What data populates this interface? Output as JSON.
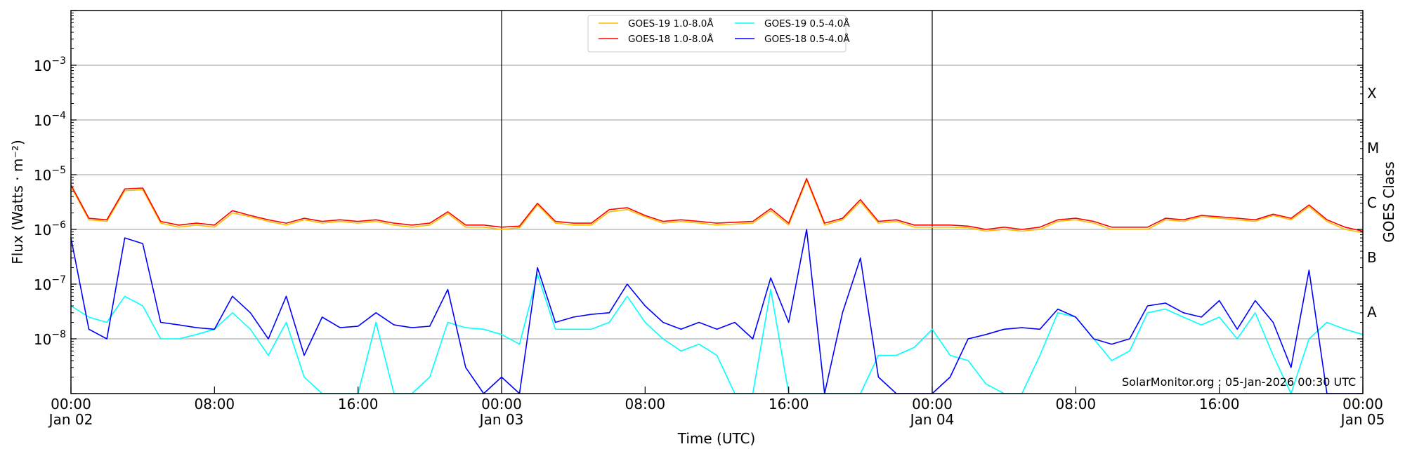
{
  "chart_data": {
    "type": "line",
    "title": "",
    "xlabel": "Time (UTC)",
    "ylabel": "Flux (Watts · m⁻²)",
    "ylabel_right": "GOES Class",
    "yscale": "log",
    "ylim": [
      1e-09,
      0.01
    ],
    "xlim": [
      "2026-01-02T00:00",
      "2026-01-05T00:00"
    ],
    "grid": "horizontal at each decade",
    "legend_placement": "top-center",
    "y_ticks": [
      {
        "base": "10",
        "exp": "−3",
        "value": 0.001
      },
      {
        "base": "10",
        "exp": "−4",
        "value": 0.0001
      },
      {
        "base": "10",
        "exp": "−5",
        "value": 1e-05
      },
      {
        "base": "10",
        "exp": "−6",
        "value": 1e-06
      },
      {
        "base": "10",
        "exp": "−7",
        "value": 1e-07
      },
      {
        "base": "10",
        "exp": "−8",
        "value": 1e-08
      }
    ],
    "x_ticks": [
      {
        "time": "2026-01-02T00:00",
        "label": "00:00",
        "date": "Jan 02"
      },
      {
        "time": "2026-01-02T08:00",
        "label": "08:00",
        "date": ""
      },
      {
        "time": "2026-01-02T16:00",
        "label": "16:00",
        "date": ""
      },
      {
        "time": "2026-01-03T00:00",
        "label": "00:00",
        "date": "Jan 03"
      },
      {
        "time": "2026-01-03T08:00",
        "label": "08:00",
        "date": ""
      },
      {
        "time": "2026-01-03T16:00",
        "label": "16:00",
        "date": ""
      },
      {
        "time": "2026-01-04T00:00",
        "label": "00:00",
        "date": "Jan 04"
      },
      {
        "time": "2026-01-04T08:00",
        "label": "08:00",
        "date": ""
      },
      {
        "time": "2026-01-04T16:00",
        "label": "16:00",
        "date": ""
      },
      {
        "time": "2026-01-05T00:00",
        "label": "00:00",
        "date": "Jan 05"
      }
    ],
    "day_lines": [
      "2026-01-03T00:00",
      "2026-01-04T00:00"
    ],
    "goes_classes": [
      {
        "label": "X",
        "min": 0.0001
      },
      {
        "label": "M",
        "min": 1e-05
      },
      {
        "label": "C",
        "min": 1e-06
      },
      {
        "label": "B",
        "min": 1e-07
      },
      {
        "label": "A",
        "min": 1e-08
      }
    ],
    "x": [
      "2026-01-02T00:00",
      "2026-01-02T01:00",
      "2026-01-02T02:00",
      "2026-01-02T03:00",
      "2026-01-02T04:00",
      "2026-01-02T05:00",
      "2026-01-02T06:00",
      "2026-01-02T07:00",
      "2026-01-02T08:00",
      "2026-01-02T09:00",
      "2026-01-02T10:00",
      "2026-01-02T11:00",
      "2026-01-02T12:00",
      "2026-01-02T13:00",
      "2026-01-02T14:00",
      "2026-01-02T15:00",
      "2026-01-02T16:00",
      "2026-01-02T17:00",
      "2026-01-02T18:00",
      "2026-01-02T19:00",
      "2026-01-02T20:00",
      "2026-01-02T21:00",
      "2026-01-02T22:00",
      "2026-01-02T23:00",
      "2026-01-03T00:00",
      "2026-01-03T01:00",
      "2026-01-03T02:00",
      "2026-01-03T03:00",
      "2026-01-03T04:00",
      "2026-01-03T05:00",
      "2026-01-03T06:00",
      "2026-01-03T07:00",
      "2026-01-03T08:00",
      "2026-01-03T09:00",
      "2026-01-03T10:00",
      "2026-01-03T11:00",
      "2026-01-03T12:00",
      "2026-01-03T13:00",
      "2026-01-03T14:00",
      "2026-01-03T15:00",
      "2026-01-03T16:00",
      "2026-01-03T17:00",
      "2026-01-03T18:00",
      "2026-01-03T19:00",
      "2026-01-03T20:00",
      "2026-01-03T21:00",
      "2026-01-03T22:00",
      "2026-01-03T23:00",
      "2026-01-04T00:00",
      "2026-01-04T01:00",
      "2026-01-04T02:00",
      "2026-01-04T03:00",
      "2026-01-04T04:00",
      "2026-01-04T05:00",
      "2026-01-04T06:00",
      "2026-01-04T07:00",
      "2026-01-04T08:00",
      "2026-01-04T09:00",
      "2026-01-04T10:00",
      "2026-01-04T11:00",
      "2026-01-04T12:00",
      "2026-01-04T13:00",
      "2026-01-04T14:00",
      "2026-01-04T15:00",
      "2026-01-04T16:00",
      "2026-01-04T17:00",
      "2026-01-04T18:00",
      "2026-01-04T19:00",
      "2026-01-04T20:00",
      "2026-01-04T21:00",
      "2026-01-04T22:00",
      "2026-01-04T23:00",
      "2026-01-05T00:00"
    ],
    "series": [
      {
        "name": "GOES-19 1.0-8.0Å",
        "color": "#ffbf00",
        "values": [
          6e-06,
          1.5e-06,
          1.4e-06,
          5.1e-06,
          5.3e-06,
          1.3e-06,
          1.1e-06,
          1.2e-06,
          1.1e-06,
          2e-06,
          1.7e-06,
          1.4e-06,
          1.2e-06,
          1.5e-06,
          1.3e-06,
          1.4e-06,
          1.3e-06,
          1.4e-06,
          1.2e-06,
          1.1e-06,
          1.2e-06,
          1.95e-06,
          1.1e-06,
          1.1e-06,
          1e-06,
          1.07e-06,
          2.8e-06,
          1.3e-06,
          1.2e-06,
          1.2e-06,
          2.1e-06,
          2.3e-06,
          1.7e-06,
          1.3e-06,
          1.4e-06,
          1.3e-06,
          1.2e-06,
          1.25e-06,
          1.3e-06,
          2.2e-06,
          1.2e-06,
          7.9e-06,
          1.2e-06,
          1.5e-06,
          3.2e-06,
          1.3e-06,
          1.4e-06,
          1.1e-06,
          1.1e-06,
          1.1e-06,
          1.07e-06,
          9.3e-07,
          1e-06,
          9.3e-07,
          1e-06,
          1.4e-06,
          1.5e-06,
          1.3e-06,
          1e-06,
          1e-06,
          1e-06,
          1.5e-06,
          1.4e-06,
          1.7e-06,
          1.6e-06,
          1.5e-06,
          1.4e-06,
          1.8e-06,
          1.5e-06,
          2.6e-06,
          1.4e-06,
          1e-06,
          8.7e-07
        ]
      },
      {
        "name": "GOES-18 1.0-8.0Å",
        "color": "#ff0000",
        "values": [
          6.5e-06,
          1.6e-06,
          1.5e-06,
          5.5e-06,
          5.7e-06,
          1.4e-06,
          1.2e-06,
          1.3e-06,
          1.2e-06,
          2.2e-06,
          1.8e-06,
          1.5e-06,
          1.3e-06,
          1.6e-06,
          1.4e-06,
          1.5e-06,
          1.4e-06,
          1.5e-06,
          1.3e-06,
          1.2e-06,
          1.3e-06,
          2.1e-06,
          1.2e-06,
          1.2e-06,
          1.1e-06,
          1.15e-06,
          3e-06,
          1.4e-06,
          1.3e-06,
          1.3e-06,
          2.3e-06,
          2.5e-06,
          1.8e-06,
          1.4e-06,
          1.5e-06,
          1.4e-06,
          1.3e-06,
          1.35e-06,
          1.4e-06,
          2.4e-06,
          1.3e-06,
          8.5e-06,
          1.3e-06,
          1.6e-06,
          3.5e-06,
          1.4e-06,
          1.5e-06,
          1.2e-06,
          1.2e-06,
          1.2e-06,
          1.15e-06,
          1e-06,
          1.1e-06,
          1e-06,
          1.1e-06,
          1.5e-06,
          1.6e-06,
          1.4e-06,
          1.1e-06,
          1.1e-06,
          1.1e-06,
          1.6e-06,
          1.5e-06,
          1.8e-06,
          1.7e-06,
          1.6e-06,
          1.5e-06,
          1.9e-06,
          1.6e-06,
          2.8e-06,
          1.5e-06,
          1.1e-06,
          9.3e-07
        ]
      },
      {
        "name": "GOES-19 0.5-4.0Å",
        "color": "#00ffff",
        "values": [
          4e-08,
          2.5e-08,
          2e-08,
          6e-08,
          4e-08,
          1e-08,
          1e-08,
          1.2e-08,
          1.5e-08,
          3e-08,
          1.5e-08,
          5e-09,
          2e-08,
          2e-09,
          1e-09,
          1e-09,
          1e-09,
          2e-08,
          1e-09,
          1e-09,
          2e-09,
          2e-08,
          1.6e-08,
          1.5e-08,
          1.2e-08,
          8e-09,
          1.5e-07,
          1.5e-08,
          1.5e-08,
          1.5e-08,
          2e-08,
          6e-08,
          2e-08,
          1e-08,
          6e-09,
          8e-09,
          5e-09,
          1e-09,
          1e-09,
          8e-08,
          1e-09,
          1e-09,
          1e-09,
          1e-09,
          1e-09,
          5e-09,
          5e-09,
          7e-09,
          1.5e-08,
          5e-09,
          4e-09,
          1.5e-09,
          1e-09,
          1e-09,
          5e-09,
          3e-08,
          2.5e-08,
          1e-08,
          4e-09,
          6e-09,
          3e-08,
          3.5e-08,
          2.5e-08,
          1.8e-08,
          2.5e-08,
          1e-08,
          3e-08,
          5e-09,
          1e-09,
          1e-08,
          2e-08,
          1.5e-08,
          1.2e-08
        ]
      },
      {
        "name": "GOES-18 0.5-4.0Å",
        "color": "#0000ff",
        "values": [
          7e-07,
          1.5e-08,
          1e-08,
          7e-07,
          5.5e-07,
          2e-08,
          1.8e-08,
          1.6e-08,
          1.5e-08,
          6e-08,
          3e-08,
          1e-08,
          6e-08,
          5e-09,
          2.5e-08,
          1.6e-08,
          1.7e-08,
          3e-08,
          1.8e-08,
          1.6e-08,
          1.7e-08,
          8e-08,
          3e-09,
          1e-09,
          2e-09,
          1e-09,
          2e-07,
          2e-08,
          2.5e-08,
          2.8e-08,
          3e-08,
          1e-07,
          4e-08,
          2e-08,
          1.5e-08,
          2e-08,
          1.5e-08,
          2e-08,
          1e-08,
          1.3e-07,
          2e-08,
          1e-06,
          1e-09,
          3e-08,
          3e-07,
          2e-09,
          1e-09,
          1e-09,
          1e-09,
          2e-09,
          1e-08,
          1.2e-08,
          1.5e-08,
          1.6e-08,
          1.5e-08,
          3.5e-08,
          2.5e-08,
          1e-08,
          8e-09,
          1e-08,
          4e-08,
          4.5e-08,
          3e-08,
          2.5e-08,
          5e-08,
          1.5e-08,
          5e-08,
          2e-08,
          3e-09,
          1.8e-07,
          1e-09,
          1e-09,
          1e-09
        ]
      }
    ],
    "annotation": "SolarMonitor.org : 05-Jan-2026 00:30 UTC"
  }
}
